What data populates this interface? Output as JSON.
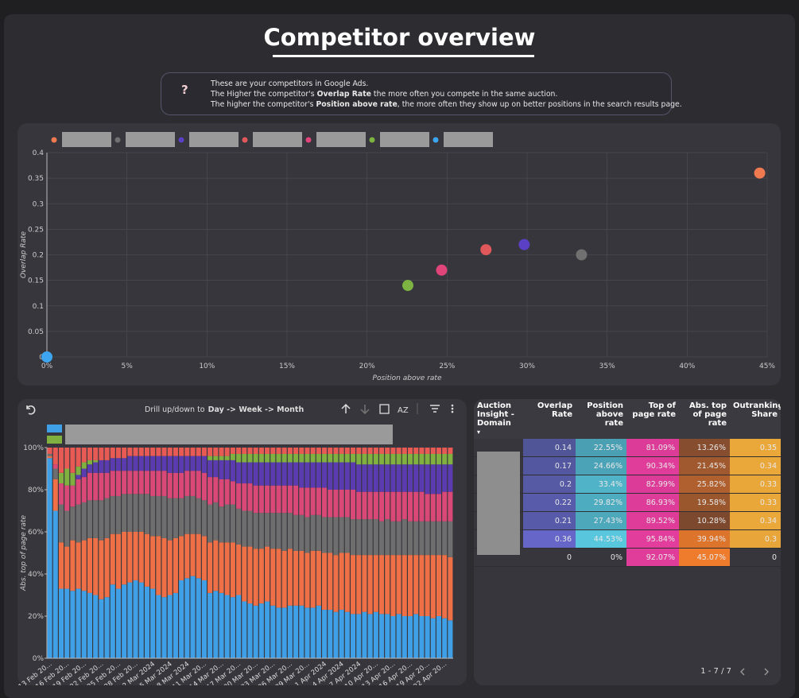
{
  "header": {
    "title": "Competitor overview"
  },
  "info": {
    "lines": [
      {
        "text": "These are your competitors in Google Ads."
      },
      {
        "pre": "The Higher the competitor's",
        "strong": "Overlap Rate",
        "post": "the more often you compete in the same auction."
      },
      {
        "pre": "The higher the competitor's",
        "strong": "Position above rate",
        "post": ", the more often they show up on better positions in the search results page."
      }
    ]
  },
  "chart_data": [
    {
      "type": "scatter",
      "x_label": "Position above rate",
      "y_label": "Overlap Rate",
      "xlim": [
        0,
        45
      ],
      "xticks": [
        {
          "value": 0,
          "label": "0%"
        },
        {
          "value": 5,
          "label": "5%"
        },
        {
          "value": 10,
          "label": "10%"
        },
        {
          "value": 15,
          "label": "15%"
        },
        {
          "value": 20,
          "label": "20%"
        },
        {
          "value": 25,
          "label": "25%"
        },
        {
          "value": 30,
          "label": "30%"
        },
        {
          "value": 35,
          "label": "35%"
        },
        {
          "value": 40,
          "label": "40%"
        },
        {
          "value": 45,
          "label": "45%"
        }
      ],
      "ylim": [
        0,
        0.4
      ],
      "yticks": [
        0,
        0.05,
        0.1,
        0.15,
        0.2,
        0.25,
        0.3,
        0.35,
        0.4
      ],
      "grid": true,
      "series": [
        {
          "color": "#f07a4f",
          "x": [
            44.53
          ],
          "values": [
            0.36
          ]
        },
        {
          "color": "#707070",
          "x": [
            33.4
          ],
          "values": [
            0.2
          ]
        },
        {
          "color": "#5b3fc4",
          "x": [
            29.82
          ],
          "values": [
            0.22
          ]
        },
        {
          "color": "#e0585a",
          "x": [
            27.43
          ],
          "values": [
            0.21
          ]
        },
        {
          "color": "#e04478",
          "x": [
            24.66
          ],
          "values": [
            0.17
          ]
        },
        {
          "color": "#7cb342",
          "x": [
            22.55
          ],
          "values": [
            0.14
          ]
        },
        {
          "color": "#3ea6f0",
          "x": [
            0
          ],
          "values": [
            0
          ]
        }
      ]
    },
    {
      "type": "stacked_bar",
      "y_label": "Abs. top of page rate",
      "toolbar": {
        "text": "Drill up/down to",
        "levels": "Day -> Week -> Month"
      },
      "ylim": [
        0,
        100
      ],
      "yticks": [
        {
          "value": 0,
          "label": "0%"
        },
        {
          "value": 20,
          "label": "20%"
        },
        {
          "value": 40,
          "label": "40%"
        },
        {
          "value": 60,
          "label": "60%"
        },
        {
          "value": 80,
          "label": "80%"
        },
        {
          "value": 100,
          "label": "100%"
        }
      ],
      "categories": [
        "13 Feb 20...",
        null,
        null,
        "16 Feb 20...",
        null,
        null,
        "19 Feb 20...",
        null,
        null,
        "22 Feb 20...",
        null,
        null,
        "25 Feb 20...",
        null,
        null,
        "28 Feb 20...",
        null,
        null,
        "2 Mar 2024",
        null,
        null,
        "5 Mar 2024",
        null,
        null,
        "8 Mar 2024",
        null,
        null,
        "11 Mar 20...",
        null,
        null,
        "14 Mar 20...",
        null,
        null,
        "17 Mar 20...",
        null,
        null,
        "20 Mar 20...",
        null,
        null,
        "23 Mar 20...",
        null,
        null,
        "26 Mar 20...",
        null,
        null,
        "29 Mar 20...",
        null,
        null,
        "1 Apr 2024",
        null,
        null,
        "4 Apr 2024",
        null,
        null,
        "7 Apr 2024",
        null,
        null,
        "10 Apr 20...",
        null,
        null,
        "13 Apr 20...",
        null,
        null,
        "16 Apr 20...",
        null,
        null,
        "19 Apr 20...",
        null,
        null,
        "22 Apr 20...",
        null
      ],
      "series": [
        {
          "color": "#3fa0e8",
          "values": [
            95,
            70,
            33,
            33,
            32,
            33,
            32,
            31,
            30,
            28,
            29,
            35,
            33,
            35,
            36,
            37,
            36,
            34,
            33,
            30,
            29,
            30,
            31,
            37,
            38,
            39,
            38,
            37,
            31,
            32,
            31,
            30,
            29,
            30,
            27,
            26,
            25,
            26,
            27,
            25,
            24,
            24,
            25,
            25,
            25,
            24,
            24,
            25,
            23,
            23,
            22,
            23,
            22,
            21,
            21,
            22,
            21,
            22,
            21,
            21,
            20,
            21,
            20,
            20,
            21,
            20,
            20,
            19,
            20,
            19,
            18
          ]
        },
        {
          "color": "#ef7046",
          "values": [
            1,
            15,
            22,
            20,
            24,
            22,
            24,
            26,
            27,
            28,
            28,
            24,
            26,
            25,
            24,
            23,
            24,
            25,
            25,
            28,
            28,
            26,
            26,
            21,
            21,
            20,
            21,
            21,
            24,
            24,
            24,
            25,
            26,
            24,
            26,
            27,
            27,
            26,
            26,
            27,
            28,
            27,
            27,
            26,
            26,
            26,
            27,
            26,
            27,
            27,
            27,
            27,
            28,
            28,
            28,
            27,
            28,
            27,
            28,
            28,
            29,
            28,
            29,
            29,
            28,
            29,
            29,
            30,
            29,
            30,
            30
          ]
        },
        {
          "color": "#6e6e6e",
          "values": [
            1,
            5,
            18,
            17,
            16,
            18,
            18,
            18,
            18,
            19,
            19,
            18,
            18,
            18,
            18,
            18,
            18,
            19,
            19,
            19,
            20,
            20,
            19,
            18,
            18,
            18,
            17,
            17,
            18,
            18,
            17,
            18,
            18,
            17,
            17,
            17,
            17,
            17,
            16,
            17,
            17,
            18,
            17,
            17,
            17,
            17,
            17,
            17,
            17,
            17,
            18,
            17,
            17,
            17,
            17,
            17,
            17,
            17,
            16,
            17,
            16,
            16,
            17,
            16,
            16,
            16,
            16,
            16,
            16,
            16,
            17
          ]
        },
        {
          "color": "#d94877",
          "values": [
            0,
            2,
            10,
            12,
            10,
            12,
            12,
            13,
            13,
            13,
            12,
            12,
            12,
            11,
            11,
            11,
            11,
            11,
            12,
            12,
            12,
            12,
            12,
            12,
            12,
            12,
            13,
            13,
            13,
            12,
            13,
            12,
            11,
            12,
            13,
            13,
            13,
            13,
            13,
            13,
            13,
            13,
            13,
            14,
            13,
            14,
            13,
            13,
            14,
            13,
            13,
            13,
            13,
            14,
            13,
            13,
            13,
            13,
            14,
            13,
            14,
            14,
            13,
            14,
            14,
            14,
            13,
            13,
            13,
            14,
            14
          ]
        },
        {
          "color": "#5a3bb0",
          "values": [
            0,
            0,
            0,
            0,
            0,
            2,
            4,
            4,
            5,
            6,
            6,
            6,
            6,
            6,
            7,
            7,
            7,
            7,
            7,
            7,
            7,
            8,
            8,
            8,
            7,
            7,
            7,
            8,
            8,
            8,
            9,
            9,
            10,
            10,
            10,
            10,
            11,
            11,
            11,
            11,
            11,
            11,
            11,
            11,
            12,
            12,
            12,
            12,
            12,
            13,
            13,
            13,
            13,
            13,
            13,
            13,
            13,
            13,
            13,
            13,
            13,
            13,
            13,
            13,
            13,
            13,
            14,
            14,
            14,
            13,
            13
          ]
        },
        {
          "color": "#7fb040",
          "values": [
            0,
            0,
            5,
            8,
            6,
            4,
            3,
            2,
            1,
            0,
            0,
            0,
            0,
            0,
            0,
            0,
            0,
            0,
            0,
            0,
            0,
            0,
            0,
            0,
            0,
            0,
            0,
            0,
            2,
            2,
            2,
            2,
            3,
            4,
            4,
            4,
            4,
            4,
            4,
            4,
            4,
            4,
            4,
            4,
            4,
            4,
            4,
            4,
            4,
            4,
            4,
            4,
            4,
            4,
            5,
            5,
            5,
            5,
            5,
            5,
            5,
            5,
            5,
            5,
            5,
            5,
            5,
            5,
            5,
            5,
            5
          ]
        },
        {
          "color": "#e85b55",
          "values": [
            3,
            8,
            12,
            10,
            12,
            9,
            7,
            6,
            6,
            6,
            6,
            5,
            5,
            5,
            4,
            4,
            4,
            4,
            4,
            4,
            4,
            4,
            4,
            4,
            4,
            4,
            4,
            4,
            4,
            4,
            4,
            4,
            3,
            3,
            3,
            3,
            3,
            3,
            3,
            3,
            3,
            3,
            3,
            3,
            3,
            3,
            3,
            3,
            3,
            3,
            3,
            3,
            3,
            3,
            3,
            3,
            3,
            3,
            3,
            3,
            3,
            3,
            3,
            3,
            3,
            3,
            3,
            3,
            3,
            3,
            3
          ]
        }
      ]
    }
  ],
  "table": {
    "columns": [
      "Auction Insight - Domain",
      "Overlap Rate",
      "Position above rate",
      "Top of page rate",
      "Abs. top of page rate",
      "Outranking Share"
    ],
    "heat_colors": [
      [
        "#434a7a",
        "#6566c8"
      ],
      [
        "#3b7888",
        "#58c6dc"
      ],
      [
        "#b8327a",
        "#e23d9c"
      ],
      [
        "#5a3a30",
        "#ee7c2c"
      ],
      [
        "#d9963a",
        "#eaa83a"
      ]
    ],
    "rows": [
      [
        "0.14",
        "22.55%",
        "81.09%",
        "13.26%",
        "0.35"
      ],
      [
        "0.17",
        "24.66%",
        "90.34%",
        "21.45%",
        "0.34"
      ],
      [
        "0.2",
        "33.4%",
        "82.99%",
        "25.82%",
        "0.33"
      ],
      [
        "0.22",
        "29.82%",
        "86.93%",
        "19.58%",
        "0.33"
      ],
      [
        "0.21",
        "27.43%",
        "89.52%",
        "10.28%",
        "0.34"
      ],
      [
        "0.36",
        "44.53%",
        "95.84%",
        "39.94%",
        "0.3"
      ],
      [
        "0",
        "0%",
        "92.07%",
        "45.07%",
        "0"
      ]
    ],
    "pagination": "1 - 7 / 7"
  }
}
